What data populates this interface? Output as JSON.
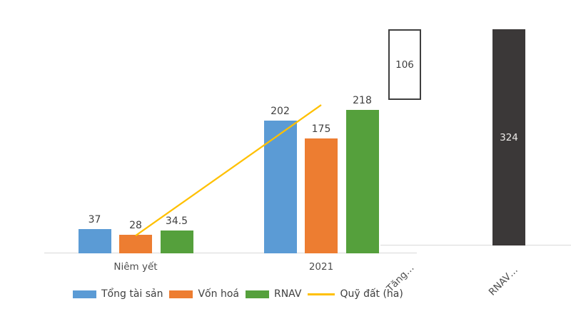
{
  "chart_data": {
    "type": "bar",
    "title": "",
    "grid": false,
    "legend_position": "bottom",
    "background": "#ffffff",
    "colors": {
      "axis_line": "#d9d9d9",
      "data_label": "#3f3f3f",
      "axis_label": "#4d4d4d"
    },
    "left_chart": {
      "categories": [
        {
          "key": "niem-yet",
          "label": "Niêm yết"
        },
        {
          "key": "2021",
          "label": "2021"
        }
      ],
      "series": [
        {
          "key": "tong-tai-san",
          "name": "Tổng tài sản",
          "type": "bar",
          "color": "#5b9bd5",
          "values": [
            37,
            202
          ],
          "labels": [
            "37",
            "202"
          ]
        },
        {
          "key": "von-hoa",
          "name": "Vốn hoá",
          "type": "bar",
          "color": "#ed7d31",
          "values": [
            28,
            175
          ],
          "labels": [
            "28",
            "175"
          ]
        },
        {
          "key": "rnav",
          "name": "RNAV",
          "type": "bar",
          "color": "#55a03c",
          "values": [
            34.5,
            218
          ],
          "labels": [
            "34.5",
            "218"
          ]
        }
      ],
      "line_series": {
        "key": "quy-dat",
        "name": "Quỹ đất (ha)",
        "type": "line",
        "color": "#ffc000",
        "values": [
          27,
          226
        ],
        "values_estimated": true,
        "note": "line has no data labels in image; values estimated from pixel position"
      }
    },
    "right_chart": {
      "categories": [
        {
          "key": "tang",
          "label": "Tăng…"
        },
        {
          "key": "rnav-total",
          "label": "RNAV…"
        }
      ],
      "bars": [
        {
          "key": "tang",
          "label": "106",
          "value": 106,
          "base": 218,
          "fill": "#ffffff",
          "border": "#3f3f3f",
          "text_color": "#3f3f3f"
        },
        {
          "key": "rnav-total",
          "label": "324",
          "value": 324,
          "base": 0,
          "fill": "#3b3838",
          "border": "",
          "text_color": "#eceae8"
        }
      ]
    },
    "legend": [
      {
        "key": "tong-tai-san",
        "label": "Tổng tài sản",
        "swatch": "rect",
        "color": "#5b9bd5"
      },
      {
        "key": "von-hoa",
        "label": "Vốn hoá",
        "swatch": "rect",
        "color": "#ed7d31"
      },
      {
        "key": "rnav",
        "label": "RNAV",
        "swatch": "rect",
        "color": "#55a03c"
      },
      {
        "key": "quy-dat",
        "label": "Quỹ đất (ha)",
        "swatch": "line",
        "color": "#ffc000"
      }
    ]
  }
}
